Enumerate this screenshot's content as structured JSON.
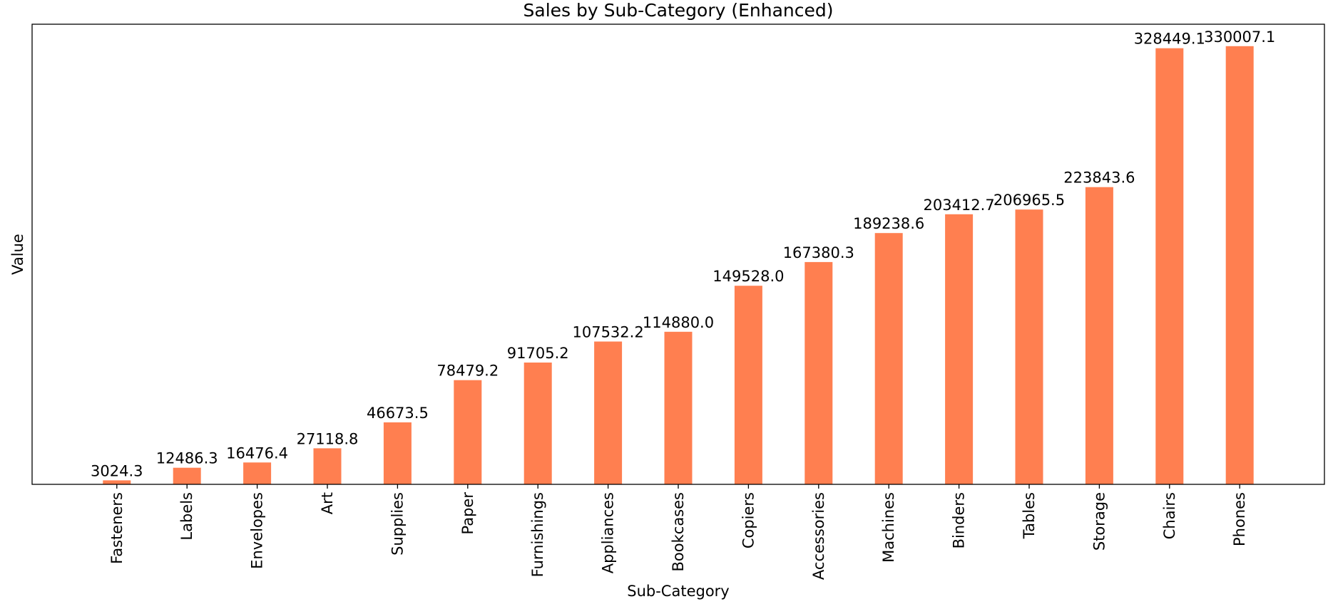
{
  "chart_data": {
    "type": "bar",
    "title": "Sales by Sub-Category (Enhanced)",
    "xlabel": "Sub-Category",
    "ylabel": "Value",
    "categories": [
      "Fasteners",
      "Labels",
      "Envelopes",
      "Art",
      "Supplies",
      "Paper",
      "Furnishings",
      "Appliances",
      "Bookcases",
      "Copiers",
      "Accessories",
      "Machines",
      "Binders",
      "Tables",
      "Storage",
      "Chairs",
      "Phones"
    ],
    "values": [
      3024.3,
      12486.3,
      16476.4,
      27118.8,
      46673.5,
      78479.2,
      91705.2,
      107532.2,
      114880.0,
      149528.0,
      167380.3,
      189238.6,
      203412.7,
      206965.5,
      223843.6,
      328449.1,
      330007.1
    ],
    "data_labels": [
      "3024.3",
      "12486.3",
      "16476.4",
      "27118.8",
      "46673.5",
      "78479.2",
      "91705.2",
      "107532.2",
      "114880.0",
      "149528.0",
      "167380.3",
      "189238.6",
      "203412.7",
      "206965.5",
      "223843.6",
      "328449.1",
      "330007.1"
    ],
    "ylim": [
      0,
      346507
    ],
    "bar_color": "#ff7f50",
    "grid": false,
    "legend": "none"
  }
}
